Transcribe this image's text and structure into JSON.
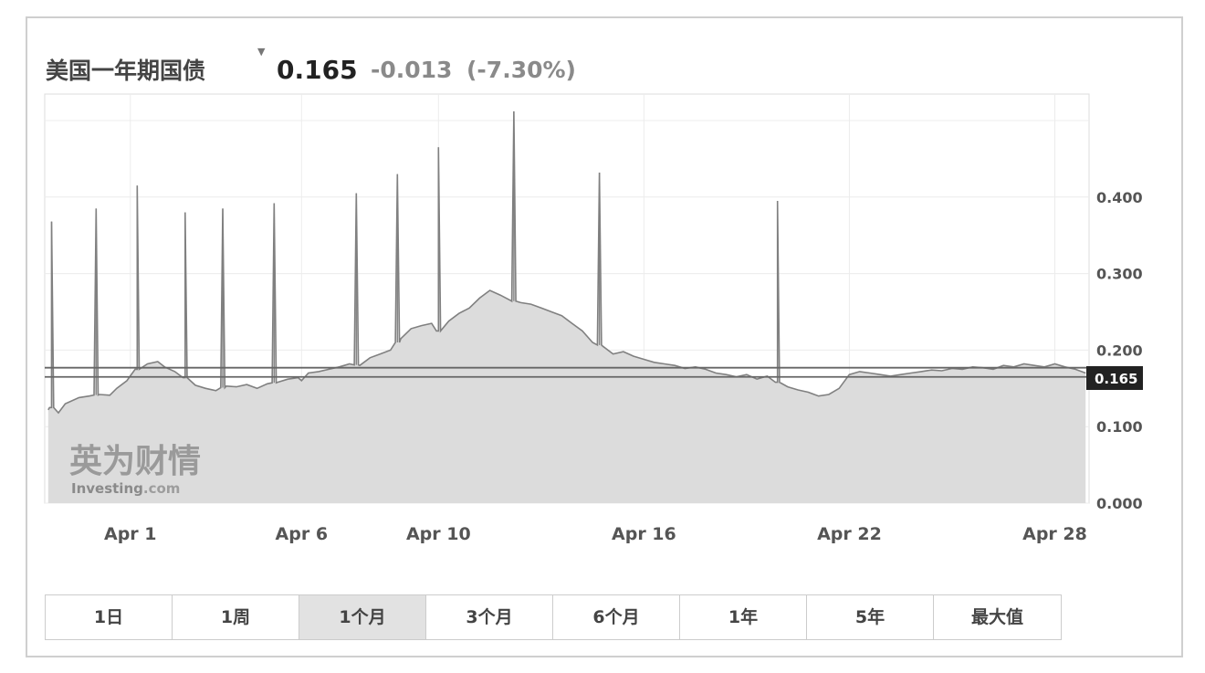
{
  "header": {
    "title": "美国一年期国债",
    "marker": "▼",
    "price": "0.165",
    "change": "-0.013",
    "change_pct": "(-7.30%)"
  },
  "watermark": {
    "cn": "英为财情",
    "en": "Investing",
    "en_suffix": ".com"
  },
  "current_value_label": "0.165",
  "periods": [
    "1日",
    "1周",
    "1个月",
    "3个月",
    "6个月",
    "1年",
    "5年",
    "最大值"
  ],
  "active_period": "1个月",
  "colors": {
    "area": "#dcdcdc",
    "line": "#808080",
    "ref_line": "#666666",
    "pointer": "#222222"
  },
  "chart_data": {
    "type": "area",
    "title": "",
    "xlabel": "",
    "ylabel": "",
    "ylim": [
      0,
      0.52
    ],
    "y_ticks": [
      "0.000",
      "0.100",
      "0.200",
      "0.300",
      "0.400"
    ],
    "y_tick_values": [
      0,
      0.1,
      0.2,
      0.3,
      0.4
    ],
    "x_tick_labels": [
      {
        "label": "Apr 1",
        "day": 1
      },
      {
        "label": "Apr 6",
        "day": 6
      },
      {
        "label": "Apr 10",
        "day": 10
      },
      {
        "label": "Apr 16",
        "day": 16
      },
      {
        "label": "Apr 22",
        "day": 22
      },
      {
        "label": "Apr 28",
        "day": 28
      }
    ],
    "xlim": [
      -1.5,
      29
    ],
    "reference_lines": [
      0.177,
      0.165
    ],
    "grid": true,
    "series": [
      {
        "x": [
          -1.4,
          -1.3,
          -1.1,
          -0.9,
          -0.5,
          -0.2,
          0.1,
          0.4,
          0.6,
          0.9,
          1.2,
          1.5,
          1.8,
          2.0,
          2.3,
          2.6,
          2.9,
          3.2,
          3.5,
          3.8,
          4.1,
          4.4,
          4.7,
          5.0,
          5.3,
          5.6,
          5.9,
          6.0,
          6.2,
          6.5,
          6.8,
          7.1,
          7.4,
          7.7,
          8.0,
          8.3,
          8.6,
          8.9,
          9.2,
          9.5,
          9.8,
          10.0,
          10.3,
          10.6,
          10.9,
          11.2,
          11.5,
          11.8,
          12.1,
          12.4,
          12.7,
          13.0,
          13.3,
          13.6,
          13.9,
          14.2,
          14.5,
          14.8,
          15.1,
          15.4,
          15.7,
          16.0,
          16.3,
          16.6,
          16.9,
          17.2,
          17.5,
          17.8,
          18.1,
          18.4,
          18.7,
          19.0,
          19.3,
          19.6,
          19.9,
          20.2,
          20.5,
          20.8,
          21.1,
          21.4,
          21.7,
          22.0,
          22.3,
          22.6,
          22.9,
          23.2,
          23.5,
          23.8,
          24.1,
          24.4,
          24.7,
          25.0,
          25.3,
          25.6,
          25.9,
          26.2,
          26.5,
          26.8,
          27.1,
          27.4,
          27.7,
          28.0,
          28.3,
          28.6,
          28.9
        ],
        "values": [
          0.122,
          0.125,
          0.118,
          0.13,
          0.138,
          0.14,
          0.142,
          0.141,
          0.15,
          0.16,
          0.175,
          0.182,
          0.185,
          0.178,
          0.172,
          0.164,
          0.154,
          0.15,
          0.147,
          0.153,
          0.152,
          0.155,
          0.15,
          0.156,
          0.158,
          0.162,
          0.164,
          0.16,
          0.17,
          0.172,
          0.175,
          0.178,
          0.182,
          0.18,
          0.19,
          0.195,
          0.2,
          0.215,
          0.228,
          0.232,
          0.235,
          0.225,
          0.238,
          0.248,
          0.255,
          0.268,
          0.278,
          0.272,
          0.265,
          0.262,
          0.26,
          0.255,
          0.25,
          0.245,
          0.235,
          0.225,
          0.21,
          0.205,
          0.195,
          0.198,
          0.192,
          0.188,
          0.184,
          0.182,
          0.18,
          0.176,
          0.178,
          0.175,
          0.17,
          0.168,
          0.165,
          0.168,
          0.162,
          0.166,
          0.158,
          0.152,
          0.148,
          0.145,
          0.14,
          0.142,
          0.15,
          0.168,
          0.172,
          0.17,
          0.168,
          0.166,
          0.168,
          0.17,
          0.172,
          0.174,
          0.173,
          0.176,
          0.175,
          0.178,
          0.177,
          0.175,
          0.18,
          0.178,
          0.182,
          0.18,
          0.178,
          0.182,
          0.178,
          0.175,
          0.17
        ]
      }
    ],
    "spikes": [
      {
        "x": -1.3,
        "value": 0.368
      },
      {
        "x": 0.0,
        "value": 0.385
      },
      {
        "x": 1.2,
        "value": 0.415
      },
      {
        "x": 2.6,
        "value": 0.38
      },
      {
        "x": 3.7,
        "value": 0.385
      },
      {
        "x": 5.2,
        "value": 0.392
      },
      {
        "x": 7.6,
        "value": 0.405
      },
      {
        "x": 8.8,
        "value": 0.43
      },
      {
        "x": 10.0,
        "value": 0.465
      },
      {
        "x": 12.2,
        "value": 0.512
      },
      {
        "x": 14.7,
        "value": 0.432
      },
      {
        "x": 19.9,
        "value": 0.395
      }
    ]
  }
}
